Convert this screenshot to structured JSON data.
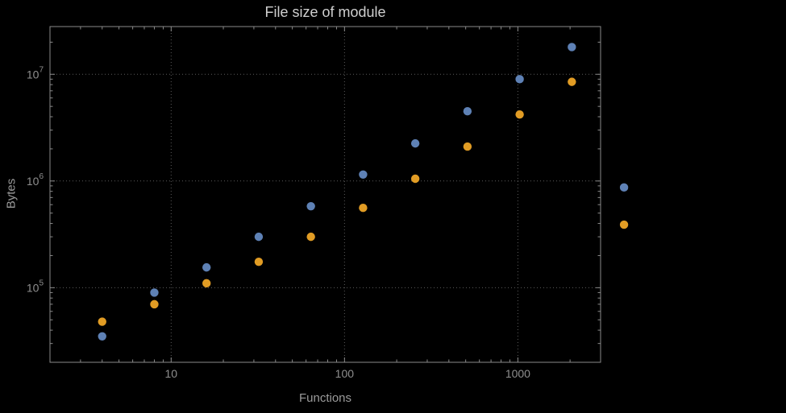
{
  "colors": {
    "background": "#000000",
    "frame": "#8a8a8a",
    "grid": "#5c5c5c",
    "tick_text": "#8f8f8f",
    "title_text": "#cfcfcf",
    "axis_label_text": "#9b9b9b",
    "series1": "#5e81b5",
    "series2": "#e19c24"
  },
  "chart_data": {
    "type": "scatter",
    "title": "File size of module",
    "xlabel": "Functions",
    "ylabel": "Bytes",
    "x_scale": "log",
    "y_scale": "log",
    "xlim": [
      2,
      3000
    ],
    "ylim": [
      20000,
      28000000
    ],
    "grid": "dotted",
    "legend": "none",
    "x_ticks": [
      10,
      100,
      1000
    ],
    "x_tick_labels": [
      "10",
      "100",
      "1000"
    ],
    "y_ticks": [
      100000,
      1000000,
      10000000
    ],
    "y_tick_base": "10",
    "y_tick_exponents": [
      "5",
      "6",
      "7"
    ],
    "series": [
      {
        "name": "series-blue",
        "color": "#5e81b5",
        "points": [
          [
            4,
            35000
          ],
          [
            8,
            90000
          ],
          [
            16,
            155000
          ],
          [
            32,
            300000
          ],
          [
            64,
            580000
          ],
          [
            128,
            1150000
          ],
          [
            256,
            2250000
          ],
          [
            512,
            4500000
          ],
          [
            1024,
            9000000
          ],
          [
            2048,
            18000000
          ],
          [
            4096,
            870000
          ]
        ]
      },
      {
        "name": "series-orange",
        "color": "#e19c24",
        "points": [
          [
            4,
            48000
          ],
          [
            8,
            70000
          ],
          [
            16,
            110000
          ],
          [
            32,
            175000
          ],
          [
            64,
            300000
          ],
          [
            128,
            560000
          ],
          [
            256,
            1050000
          ],
          [
            512,
            2100000
          ],
          [
            1024,
            4200000
          ],
          [
            2048,
            8500000
          ],
          [
            4096,
            390000
          ]
        ]
      }
    ]
  }
}
